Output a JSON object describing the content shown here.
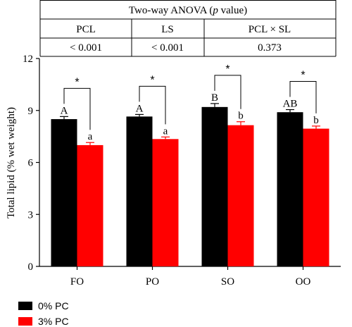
{
  "anova_table": {
    "title": "Two-way ANOVA (p value)",
    "title_prefix": "Two-way ANOVA (",
    "title_italic": "p",
    "title_suffix": " value)",
    "headers": [
      "PCL",
      "LS",
      "PCL × SL"
    ],
    "values": [
      "< 0.001",
      "< 0.001",
      "0.373"
    ]
  },
  "chart_data": {
    "type": "bar",
    "categories": [
      "FO",
      "PO",
      "SO",
      "OO"
    ],
    "ylabel": "Total lipid (% wet weight)",
    "ylim": [
      0,
      12
    ],
    "yticks": [
      0,
      3,
      6,
      9,
      12
    ],
    "grid": false,
    "legend_position": "bottom-left",
    "series": [
      {
        "name": "0% PC",
        "color": "#000000",
        "values": [
          8.5,
          8.65,
          9.2,
          8.9
        ],
        "errors": [
          0.15,
          0.12,
          0.2,
          0.15
        ],
        "letters": [
          "A",
          "A",
          "B",
          "AB"
        ]
      },
      {
        "name": "3% PC",
        "color": "#ff0000",
        "values": [
          7.0,
          7.35,
          8.15,
          7.95
        ],
        "errors": [
          0.15,
          0.12,
          0.2,
          0.15
        ],
        "letters": [
          "a",
          "a",
          "b",
          "b"
        ]
      }
    ],
    "significance": [
      "*",
      "*",
      "*",
      "*"
    ]
  }
}
